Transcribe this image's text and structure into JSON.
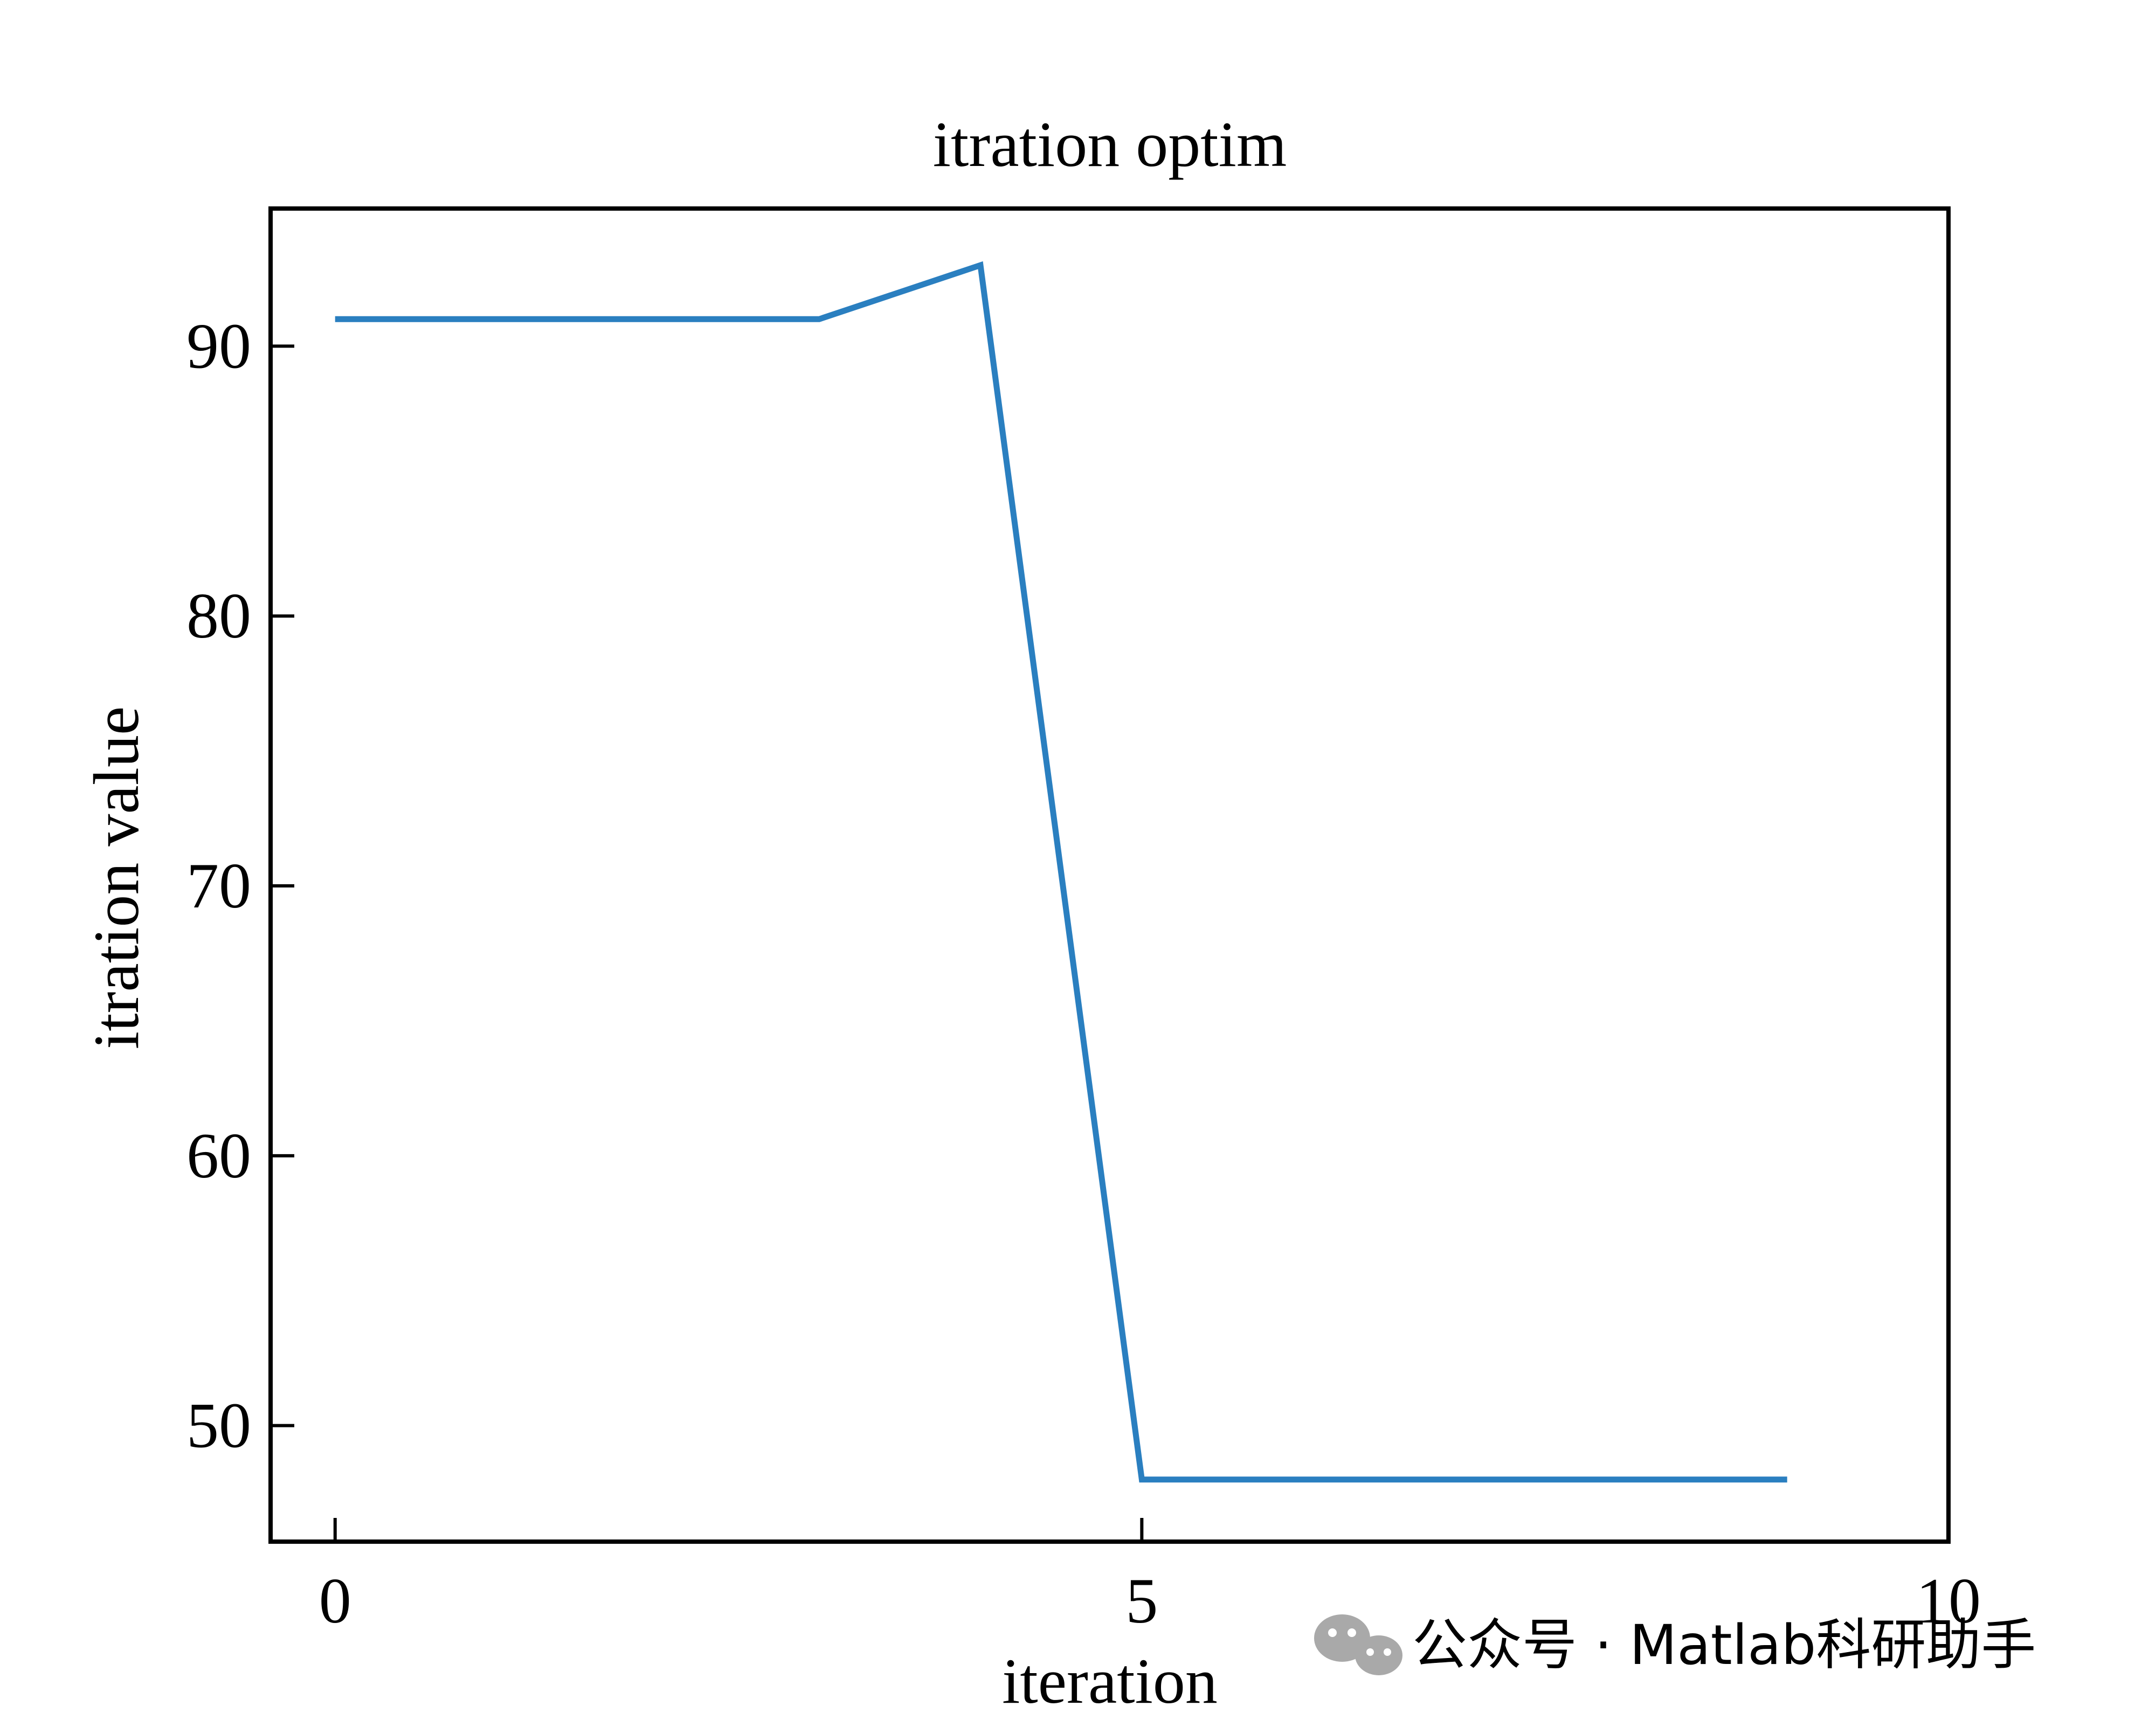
{
  "chart_data": {
    "type": "line",
    "title": "itration optim",
    "xlabel": "iteration",
    "ylabel": "itration value",
    "xlim": [
      -0.4,
      10
    ],
    "ylim": [
      45.7,
      95.1
    ],
    "xticks": [
      0,
      5,
      10
    ],
    "yticks": [
      50,
      60,
      70,
      80,
      90
    ],
    "grid": false,
    "series": [
      {
        "color": "#2a7fc0",
        "x": [
          0,
          1,
          2,
          3,
          4,
          5,
          6,
          7,
          8,
          9
        ],
        "y": [
          91,
          91,
          91,
          91,
          93,
          48,
          48,
          48,
          48,
          48
        ]
      }
    ]
  },
  "watermark": {
    "icon": "wechat-icon",
    "text": "公众号 · Matlab科研助手",
    "color": "#a9a9a9"
  }
}
